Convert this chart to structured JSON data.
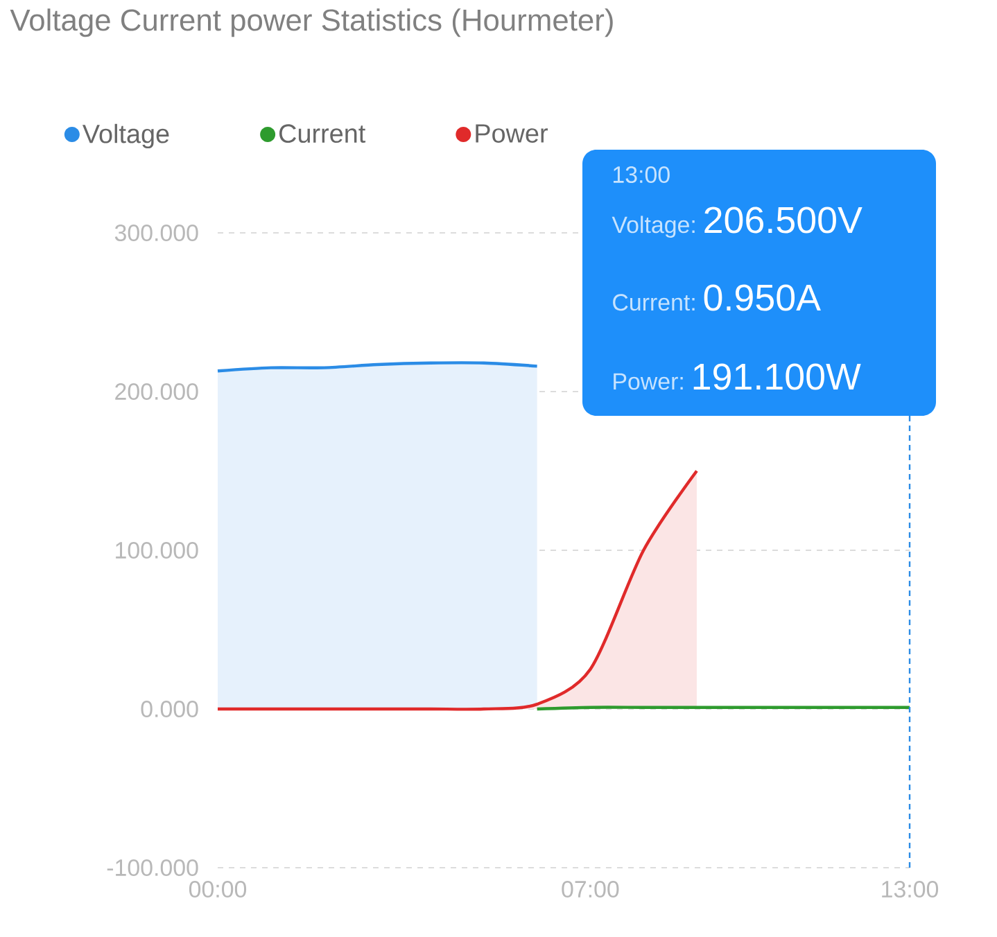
{
  "chart_data": {
    "type": "area",
    "title": "Voltage Current power Statistics (Hourmeter)",
    "x": [
      0,
      1,
      2,
      3,
      4,
      5,
      6,
      7,
      8,
      9,
      10,
      11,
      12,
      13
    ],
    "series": [
      {
        "name": "Voltage",
        "color": "#2b8ce6",
        "values": [
          213,
          215,
          215,
          217,
          218,
          218,
          216,
          null,
          null,
          null,
          null,
          null,
          null,
          null
        ]
      },
      {
        "name": "Current",
        "color": "#2e9b2e",
        "type": "line",
        "values": [
          null,
          null,
          null,
          null,
          null,
          null,
          0,
          1,
          1,
          1,
          1,
          1,
          1,
          1
        ]
      },
      {
        "name": "Power",
        "color": "#e02a2a",
        "values": [
          0,
          0,
          0,
          0,
          0,
          0,
          3,
          25,
          100,
          150,
          null,
          null,
          null,
          null
        ]
      }
    ],
    "xlim": [
      0,
      13
    ],
    "xticks": [
      {
        "value": 0,
        "label": "00:00"
      },
      {
        "value": 7,
        "label": "07:00"
      },
      {
        "value": 13,
        "label": "13:00"
      }
    ],
    "ylim": [
      -100,
      300
    ],
    "yticks": [
      {
        "value": -100,
        "label": "-100.000"
      },
      {
        "value": 0,
        "label": "0.000"
      },
      {
        "value": 100,
        "label": "100.000"
      },
      {
        "value": 200,
        "label": "200.000"
      },
      {
        "value": 300,
        "label": "300.000"
      }
    ],
    "grid": "y",
    "legend": "top",
    "ref_lines": [
      {
        "axis": "x",
        "value": 13,
        "color": "#2b8ce6",
        "line_style": "dashed"
      }
    ],
    "annotations": [
      "13:00",
      "Voltage:",
      "206.500V",
      "Current:",
      "0.950A",
      "Power:",
      "191.100W"
    ]
  }
}
